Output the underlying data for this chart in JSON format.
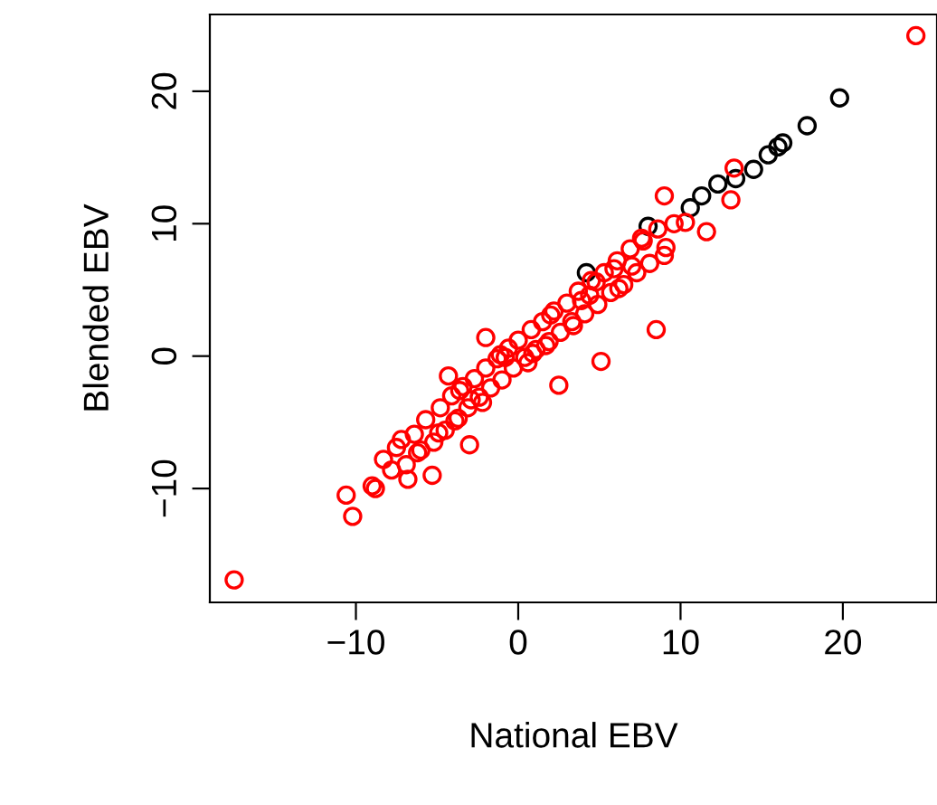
{
  "chart_data": {
    "type": "scatter",
    "xlabel": "National EBV",
    "ylabel": "Blended EBV",
    "xlim": [
      -19,
      25.8
    ],
    "ylim": [
      -18.6,
      25.8
    ],
    "xticks": [
      -10,
      0,
      10,
      20
    ],
    "yticks": [
      -10,
      0,
      10,
      20
    ],
    "grid": false,
    "legend": false,
    "marker": "circle",
    "series": [
      {
        "color": "#000000",
        "x": [
          19.8,
          17.8,
          16.3,
          16.0,
          15.4,
          14.5,
          13.4,
          12.3,
          11.3,
          10.6,
          8.0,
          4.2
        ],
        "values": [
          19.5,
          17.4,
          16.1,
          15.8,
          15.2,
          14.1,
          13.4,
          13.0,
          12.1,
          11.2,
          9.8,
          6.3
        ]
      },
      {
        "color": "#ff0000",
        "x": [
          -17.5,
          24.5,
          -10.6,
          -10.2,
          -4.3,
          8.5,
          9.0,
          13.3,
          13.1,
          11.6,
          5.1,
          2.5,
          -2.0,
          -3.0,
          -8.8,
          -5.3,
          -9.0,
          -8.3,
          -7.8,
          -7.2,
          -6.9,
          -6.4,
          -6.0,
          -5.7,
          -5.2,
          -4.8,
          -4.5,
          -4.1,
          -3.7,
          -3.4,
          -3.1,
          -2.7,
          -2.4,
          -2.0,
          -1.7,
          -1.3,
          -1.0,
          -0.6,
          -0.3,
          0.0,
          0.4,
          0.8,
          1.1,
          1.5,
          1.9,
          2.2,
          2.6,
          3.0,
          3.3,
          3.7,
          4.1,
          4.5,
          4.9,
          5.3,
          5.7,
          6.1,
          6.5,
          6.9,
          7.3,
          7.7,
          8.1,
          8.6,
          9.1,
          9.6,
          10.3,
          -7.5,
          -6.2,
          -4.9,
          -3.6,
          -2.2,
          -0.8,
          0.6,
          2.0,
          3.4,
          4.8,
          6.2,
          7.6,
          9.0,
          -6.8,
          -3.9,
          -1.1,
          1.7,
          4.4,
          7.0,
          3.9,
          5.9,
          0.9,
          -2.9
        ],
        "values": [
          -16.9,
          24.2,
          -10.5,
          -12.1,
          -1.5,
          2.0,
          12.1,
          14.2,
          11.8,
          9.4,
          -0.4,
          -2.2,
          1.4,
          -6.7,
          -10.0,
          -9.0,
          -9.8,
          -7.8,
          -8.6,
          -6.3,
          -8.2,
          -5.9,
          -7.1,
          -4.8,
          -6.5,
          -3.9,
          -5.6,
          -3.0,
          -4.7,
          -2.3,
          -3.9,
          -1.7,
          -3.1,
          -0.9,
          -2.4,
          -0.2,
          -1.8,
          0.6,
          -0.9,
          1.2,
          -0.1,
          2.0,
          0.5,
          2.6,
          1.1,
          3.4,
          1.8,
          4.0,
          2.6,
          4.9,
          3.2,
          5.7,
          3.9,
          6.3,
          4.8,
          7.2,
          5.4,
          8.1,
          6.3,
          8.7,
          7.0,
          9.6,
          8.2,
          10.0,
          10.1,
          -6.9,
          -7.3,
          -5.8,
          -2.6,
          -3.5,
          -0.1,
          -0.5,
          3.1,
          2.3,
          5.6,
          5.1,
          8.9,
          7.6,
          -9.3,
          -4.9,
          0.1,
          0.8,
          4.6,
          6.8,
          4.2,
          6.6,
          0.2,
          -3.3
        ]
      }
    ]
  }
}
